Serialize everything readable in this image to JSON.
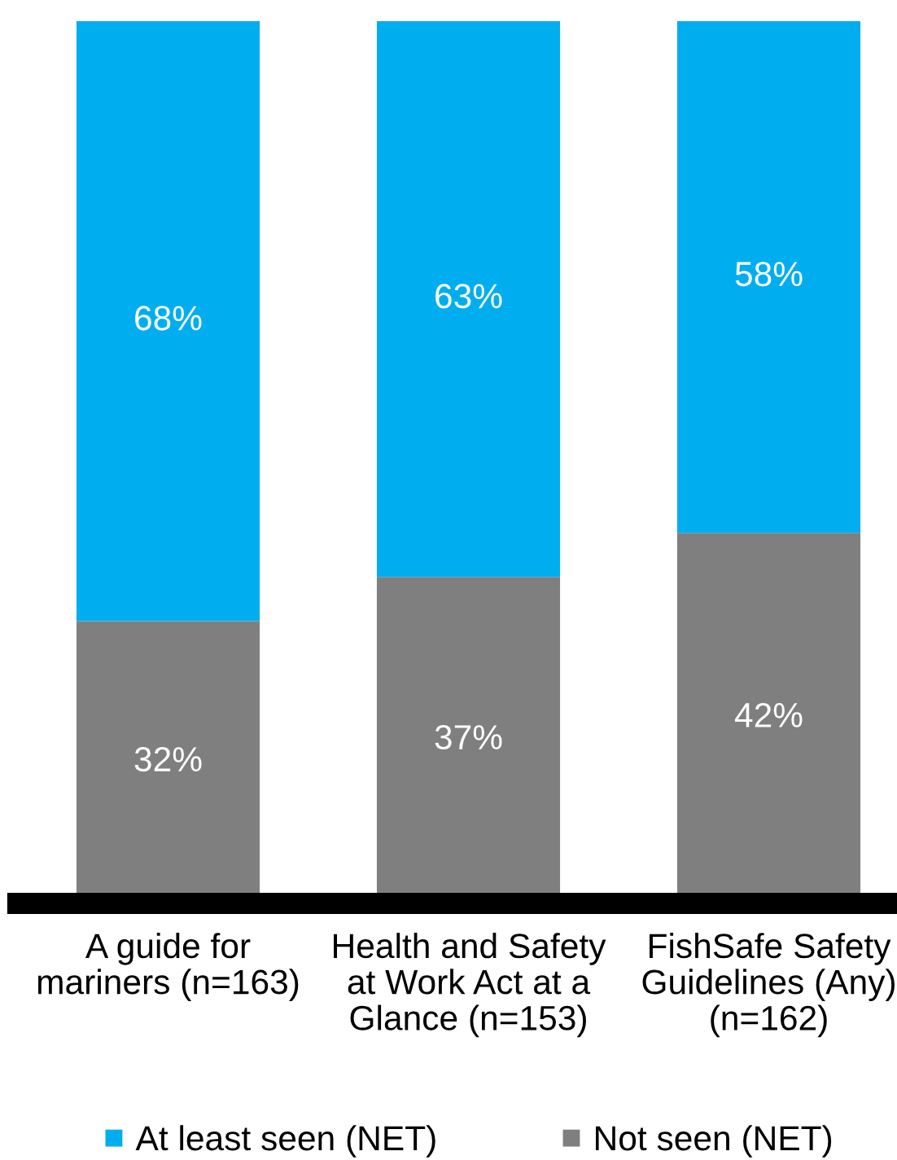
{
  "chart_data": {
    "type": "bar",
    "stacked": true,
    "categories": [
      "A guide for\nmariners (n=163)",
      "Health and Safety\nat Work Act at a\nGlance (n=153)",
      "FishSafe Safety\nGuidelines (Any)\n(n=162)"
    ],
    "series": [
      {
        "name": "Not seen (NET)",
        "color": "#7f7f7f",
        "values": [
          32,
          37,
          42
        ],
        "value_labels": [
          "32%",
          "37%",
          "42%"
        ]
      },
      {
        "name": "At least seen (NET)",
        "color": "#00aeef",
        "values": [
          68,
          63,
          58
        ],
        "value_labels": [
          "68%",
          "63%",
          "58%"
        ]
      }
    ],
    "ylim": [
      0,
      100
    ],
    "legend": "bottom",
    "tick_labels": "x"
  }
}
